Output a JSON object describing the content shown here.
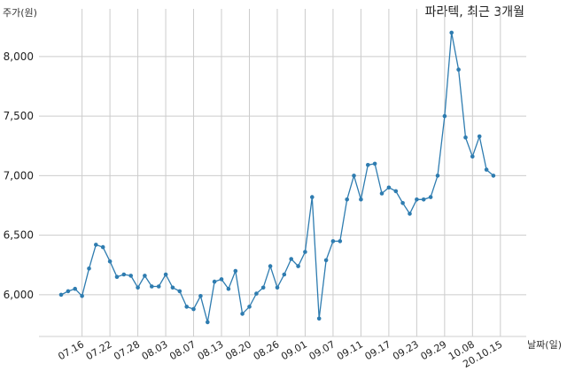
{
  "chart_data": {
    "type": "line",
    "title": "파라텍, 최근 3개월",
    "ylabel": "주가(원)",
    "xlabel": "날짜(일)",
    "ylim": [
      5650,
      8400
    ],
    "yticks": [
      6000,
      6500,
      7000,
      7500,
      8000
    ],
    "ytick_labels": [
      "6,000",
      "6,500",
      "7,000",
      "7,500",
      "8,000"
    ],
    "grid": true,
    "line_color": "#2e7cb0",
    "xtick_labels": [
      "07.16",
      "07.22",
      "07.28",
      "08.03",
      "08.07",
      "08.13",
      "08.20",
      "08.26",
      "09.01",
      "09.07",
      "09.11",
      "09.17",
      "09.23",
      "09.29",
      "10.08",
      "20.10.15"
    ],
    "xtick_index": [
      3,
      7,
      11,
      15,
      19,
      23,
      27,
      31,
      35,
      39,
      43,
      47,
      51,
      55,
      59,
      63
    ],
    "values": [
      6000,
      6030,
      6050,
      5990,
      6220,
      6420,
      6400,
      6280,
      6150,
      6170,
      6160,
      6060,
      6160,
      6070,
      6070,
      6170,
      6060,
      6030,
      5900,
      5880,
      5990,
      5770,
      6110,
      6130,
      6050,
      6200,
      5840,
      5900,
      6010,
      6060,
      6240,
      6060,
      6170,
      6300,
      6240,
      6360,
      6820,
      5800,
      6290,
      6450,
      6450,
      6800,
      7000,
      6800,
      7090,
      7100,
      6850,
      6900,
      6870,
      6770,
      6680,
      6800,
      6800,
      6820,
      7000,
      7500,
      8200,
      7890,
      7320,
      7160,
      7330,
      7050,
      7000
    ]
  }
}
